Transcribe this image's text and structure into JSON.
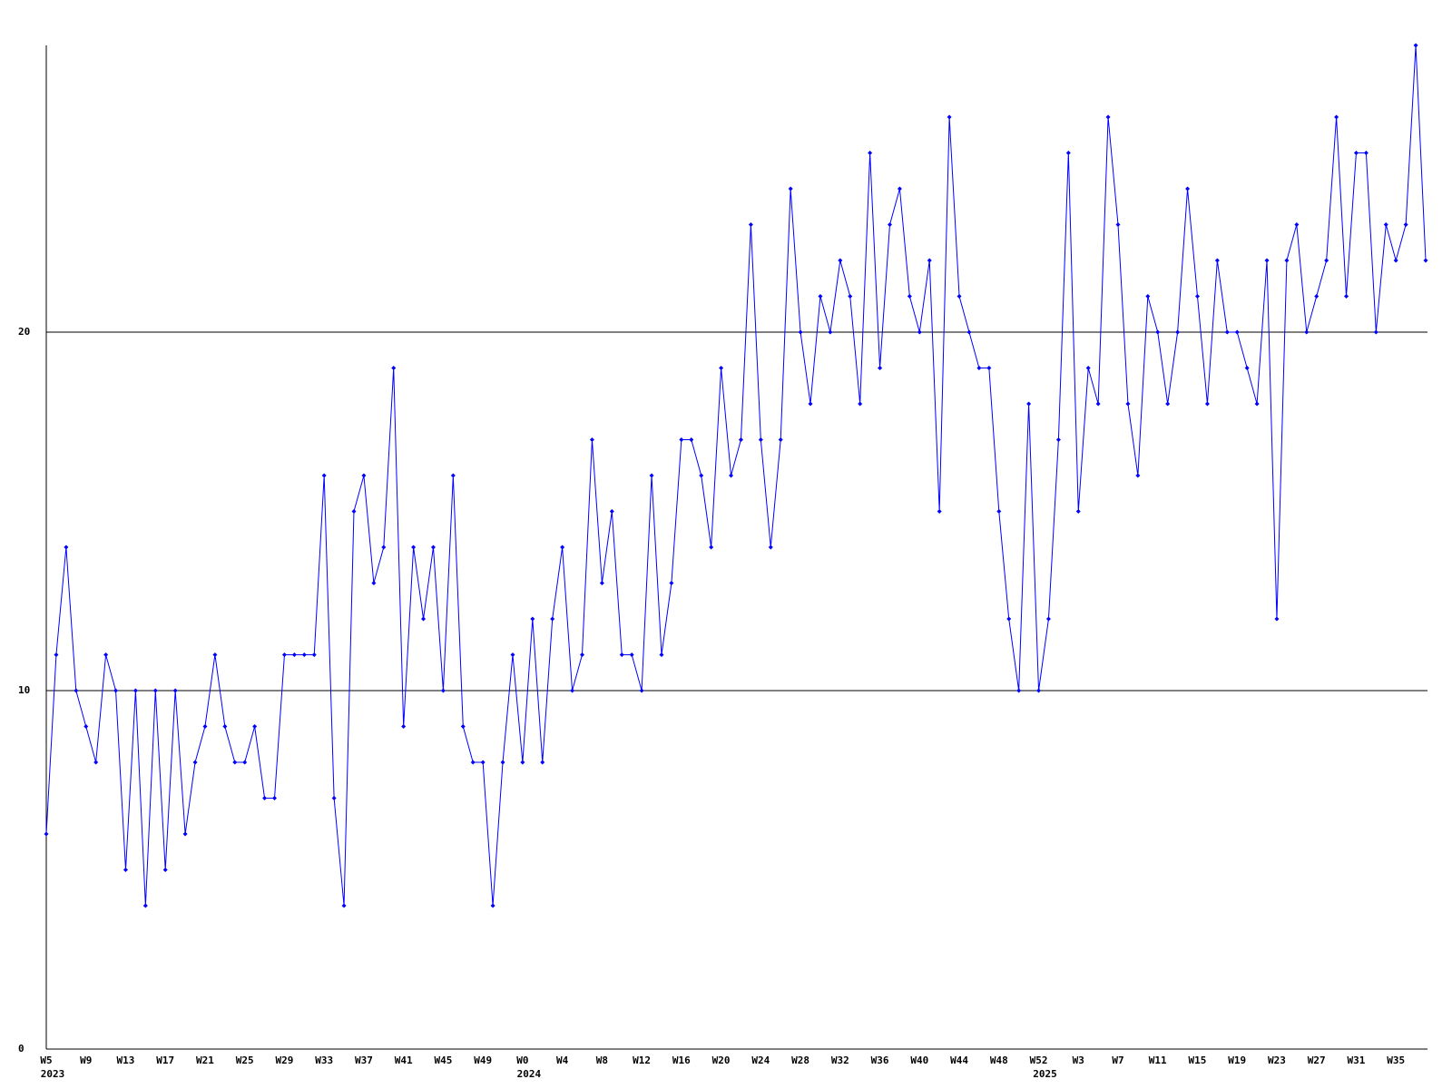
{
  "chart_data": {
    "type": "line",
    "categories": [
      "W5",
      null,
      null,
      null,
      "W9",
      null,
      null,
      null,
      "W13",
      null,
      null,
      null,
      "W17",
      null,
      null,
      null,
      "W21",
      null,
      null,
      null,
      "W25",
      null,
      null,
      null,
      "W29",
      null,
      null,
      null,
      "W33",
      null,
      null,
      null,
      "W37",
      null,
      null,
      null,
      "W41",
      null,
      null,
      null,
      "W45",
      null,
      null,
      null,
      "W49",
      null,
      null,
      null,
      "W0",
      null,
      null,
      null,
      "W4",
      null,
      null,
      null,
      "W8",
      null,
      null,
      null,
      "W12",
      null,
      null,
      null,
      "W16",
      null,
      null,
      null,
      "W20",
      null,
      null,
      null,
      "W24",
      null,
      null,
      null,
      "W28",
      null,
      null,
      null,
      "W32",
      null,
      null,
      null,
      "W36",
      null,
      null,
      null,
      "W40",
      null,
      null,
      null,
      "W44",
      null,
      null,
      null,
      "W48",
      null,
      null,
      null,
      "W52",
      null,
      null,
      null,
      "W3",
      null,
      null,
      null,
      "W7",
      null,
      null,
      null,
      "W11",
      null,
      null,
      null,
      "W15",
      null,
      null,
      null,
      "W19",
      null,
      null,
      null,
      "W23",
      null,
      null,
      null,
      "W27",
      null,
      null,
      null,
      "W31",
      null,
      null,
      null,
      "W35",
      null,
      null,
      null
    ],
    "category_years": [
      "2023",
      null,
      null,
      null,
      null,
      null,
      null,
      null,
      null,
      null,
      null,
      null,
      null,
      null,
      null,
      null,
      null,
      null,
      null,
      null,
      null,
      null,
      null,
      null,
      null,
      null,
      null,
      null,
      null,
      null,
      null,
      null,
      null,
      null,
      null,
      null,
      null,
      null,
      null,
      null,
      null,
      null,
      null,
      null,
      null,
      null,
      null,
      null,
      "2024",
      null,
      null,
      null,
      null,
      null,
      null,
      null,
      null,
      null,
      null,
      null,
      null,
      null,
      null,
      null,
      null,
      null,
      null,
      null,
      null,
      null,
      null,
      null,
      null,
      null,
      null,
      null,
      null,
      null,
      null,
      null,
      null,
      null,
      null,
      null,
      null,
      null,
      null,
      null,
      null,
      null,
      null,
      null,
      null,
      null,
      null,
      null,
      null,
      null,
      null,
      null,
      "2025",
      null,
      null,
      null,
      null,
      null,
      null,
      null,
      null,
      null,
      null,
      null,
      null,
      null,
      null,
      null,
      null,
      null,
      null,
      null,
      null,
      null,
      null,
      null,
      null,
      null,
      null,
      null,
      null,
      null,
      null,
      null,
      null,
      null,
      null,
      null,
      null,
      null,
      null,
      null
    ],
    "values": [
      6,
      11,
      14,
      10,
      9,
      8,
      11,
      10,
      5,
      10,
      4,
      10,
      5,
      10,
      6,
      8,
      9,
      11,
      9,
      8,
      8,
      9,
      7,
      7,
      11,
      11,
      11,
      11,
      16,
      7,
      4,
      15,
      16,
      13,
      14,
      19,
      9,
      14,
      12,
      14,
      10,
      16,
      9,
      8,
      8,
      4,
      8,
      11,
      8,
      12,
      8,
      12,
      14,
      10,
      11,
      17,
      13,
      15,
      11,
      11,
      10,
      16,
      11,
      13,
      17,
      17,
      16,
      14,
      19,
      16,
      17,
      23,
      17,
      14,
      17,
      24,
      20,
      18,
      21,
      20,
      22,
      21,
      18,
      25,
      19,
      23,
      24,
      21,
      20,
      22,
      15,
      26,
      21,
      20,
      19,
      19,
      15,
      12,
      10,
      18,
      10,
      12,
      17,
      25,
      15,
      19,
      18,
      26,
      23,
      18,
      16,
      21,
      20,
      18,
      20,
      24,
      21,
      18,
      22,
      20,
      20,
      19,
      18,
      22,
      12,
      22,
      23,
      20,
      21,
      22,
      26,
      21,
      25,
      25,
      20,
      23,
      22,
      23,
      28,
      22
    ],
    "color": "#0000ff",
    "ylim": [
      0,
      28
    ],
    "yticks": [
      0,
      10,
      20
    ],
    "grid": true
  }
}
